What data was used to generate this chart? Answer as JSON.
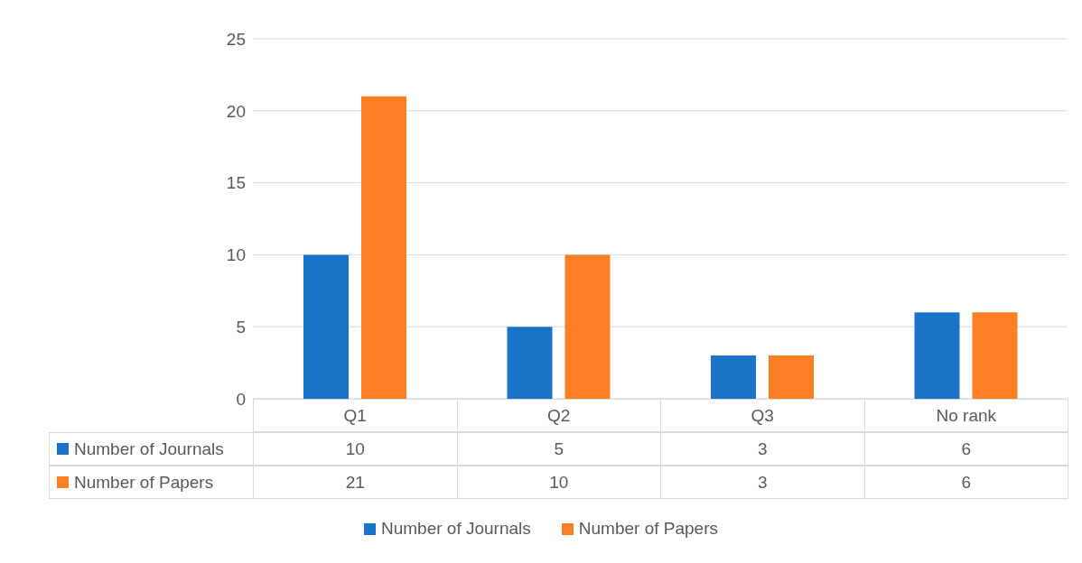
{
  "chart_data": {
    "type": "bar",
    "categories": [
      "Q1",
      "Q2",
      "Q3",
      "No rank"
    ],
    "series": [
      {
        "name": "Number of Journals",
        "color": "#1a73c8",
        "values": [
          10,
          5,
          3,
          6
        ]
      },
      {
        "name": "Number of Papers",
        "color": "#fd7f23",
        "values": [
          21,
          10,
          3,
          6
        ]
      }
    ],
    "ylim": [
      0,
      25
    ],
    "yticks": [
      0,
      5,
      10,
      15,
      20,
      25
    ],
    "grid": "y",
    "legend": "bottom",
    "data_labels": true
  }
}
